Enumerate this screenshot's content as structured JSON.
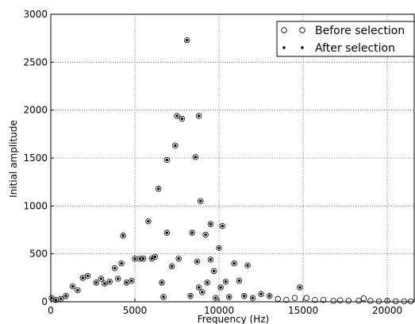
{
  "chart_data": {
    "type": "scatter",
    "title": "",
    "xlabel": "Frequency (Hz)",
    "ylabel": "Initial amplitude",
    "xlim": [
      0,
      21600
    ],
    "ylim": [
      0,
      3000
    ],
    "xticks": [
      0,
      5000,
      10000,
      15000,
      20000
    ],
    "yticks": [
      0,
      500,
      1000,
      1500,
      2000,
      2500,
      3000
    ],
    "grid": true,
    "legend_position": "top-right",
    "series": [
      {
        "name": "Before selection",
        "marker": "open-circle",
        "color": "#000000",
        "points": [
          [
            50,
            40
          ],
          [
            300,
            20
          ],
          [
            600,
            30
          ],
          [
            900,
            60
          ],
          [
            1300,
            160
          ],
          [
            1600,
            120
          ],
          [
            1900,
            250
          ],
          [
            2200,
            270
          ],
          [
            2700,
            200
          ],
          [
            3000,
            240
          ],
          [
            3200,
            190
          ],
          [
            3500,
            210
          ],
          [
            3800,
            350
          ],
          [
            4000,
            240
          ],
          [
            4200,
            400
          ],
          [
            4300,
            690
          ],
          [
            4500,
            200
          ],
          [
            4800,
            220
          ],
          [
            5000,
            450
          ],
          [
            5300,
            450
          ],
          [
            5500,
            450
          ],
          [
            5800,
            840
          ],
          [
            6000,
            450
          ],
          [
            6200,
            470
          ],
          [
            6400,
            1180
          ],
          [
            6600,
            200
          ],
          [
            6700,
            50
          ],
          [
            6900,
            1480
          ],
          [
            6900,
            720
          ],
          [
            7200,
            370
          ],
          [
            7400,
            1630
          ],
          [
            7500,
            1940
          ],
          [
            7600,
            450
          ],
          [
            7800,
            1910
          ],
          [
            8100,
            2730
          ],
          [
            8300,
            60
          ],
          [
            8400,
            720
          ],
          [
            8600,
            1510
          ],
          [
            8700,
            420
          ],
          [
            8800,
            1940
          ],
          [
            8800,
            150
          ],
          [
            8900,
            1050
          ],
          [
            9000,
            100
          ],
          [
            9200,
            700
          ],
          [
            9300,
            200
          ],
          [
            9500,
            810
          ],
          [
            9500,
            440
          ],
          [
            9700,
            320
          ],
          [
            9800,
            40
          ],
          [
            10000,
            560
          ],
          [
            10100,
            150
          ],
          [
            10200,
            790
          ],
          [
            10400,
            210
          ],
          [
            10600,
            50
          ],
          [
            10900,
            400
          ],
          [
            11200,
            220
          ],
          [
            11500,
            60
          ],
          [
            11700,
            380
          ],
          [
            12000,
            40
          ],
          [
            12500,
            80
          ],
          [
            13000,
            60
          ],
          [
            13500,
            30
          ],
          [
            14000,
            20
          ],
          [
            14500,
            40
          ],
          [
            14800,
            150
          ],
          [
            15200,
            40
          ],
          [
            15700,
            20
          ],
          [
            16200,
            20
          ],
          [
            16800,
            10
          ],
          [
            17200,
            15
          ],
          [
            17700,
            10
          ],
          [
            18300,
            10
          ],
          [
            18600,
            35
          ],
          [
            19000,
            10
          ],
          [
            19500,
            5
          ],
          [
            20000,
            10
          ],
          [
            20500,
            5
          ],
          [
            21000,
            5
          ],
          [
            21400,
            5
          ]
        ]
      },
      {
        "name": "After selection",
        "marker": "dot",
        "color": "#000000",
        "points": [
          [
            50,
            40
          ],
          [
            300,
            20
          ],
          [
            600,
            30
          ],
          [
            900,
            60
          ],
          [
            1300,
            160
          ],
          [
            1600,
            120
          ],
          [
            1900,
            250
          ],
          [
            2200,
            270
          ],
          [
            2700,
            200
          ],
          [
            3000,
            240
          ],
          [
            3200,
            190
          ],
          [
            3500,
            210
          ],
          [
            3800,
            350
          ],
          [
            4000,
            240
          ],
          [
            4200,
            400
          ],
          [
            4300,
            690
          ],
          [
            4500,
            200
          ],
          [
            4800,
            220
          ],
          [
            5000,
            450
          ],
          [
            5300,
            450
          ],
          [
            5500,
            450
          ],
          [
            5800,
            840
          ],
          [
            6000,
            450
          ],
          [
            6200,
            470
          ],
          [
            6400,
            1180
          ],
          [
            6600,
            200
          ],
          [
            6700,
            50
          ],
          [
            6900,
            1480
          ],
          [
            6900,
            720
          ],
          [
            7200,
            370
          ],
          [
            7400,
            1630
          ],
          [
            7500,
            1940
          ],
          [
            7600,
            450
          ],
          [
            7800,
            1910
          ],
          [
            8100,
            2730
          ],
          [
            8300,
            60
          ],
          [
            8400,
            720
          ],
          [
            8600,
            1510
          ],
          [
            8700,
            420
          ],
          [
            8800,
            1940
          ],
          [
            8800,
            150
          ],
          [
            8900,
            1050
          ],
          [
            9000,
            100
          ],
          [
            9200,
            700
          ],
          [
            9300,
            200
          ],
          [
            9500,
            810
          ],
          [
            9500,
            440
          ],
          [
            9700,
            320
          ],
          [
            9800,
            40
          ],
          [
            10000,
            560
          ],
          [
            10100,
            150
          ],
          [
            10200,
            790
          ],
          [
            10400,
            210
          ],
          [
            10600,
            50
          ],
          [
            10900,
            400
          ],
          [
            11200,
            220
          ],
          [
            11500,
            60
          ],
          [
            11700,
            380
          ],
          [
            12000,
            40
          ],
          [
            12500,
            80
          ],
          [
            13000,
            60
          ],
          [
            14800,
            150
          ]
        ]
      }
    ]
  }
}
